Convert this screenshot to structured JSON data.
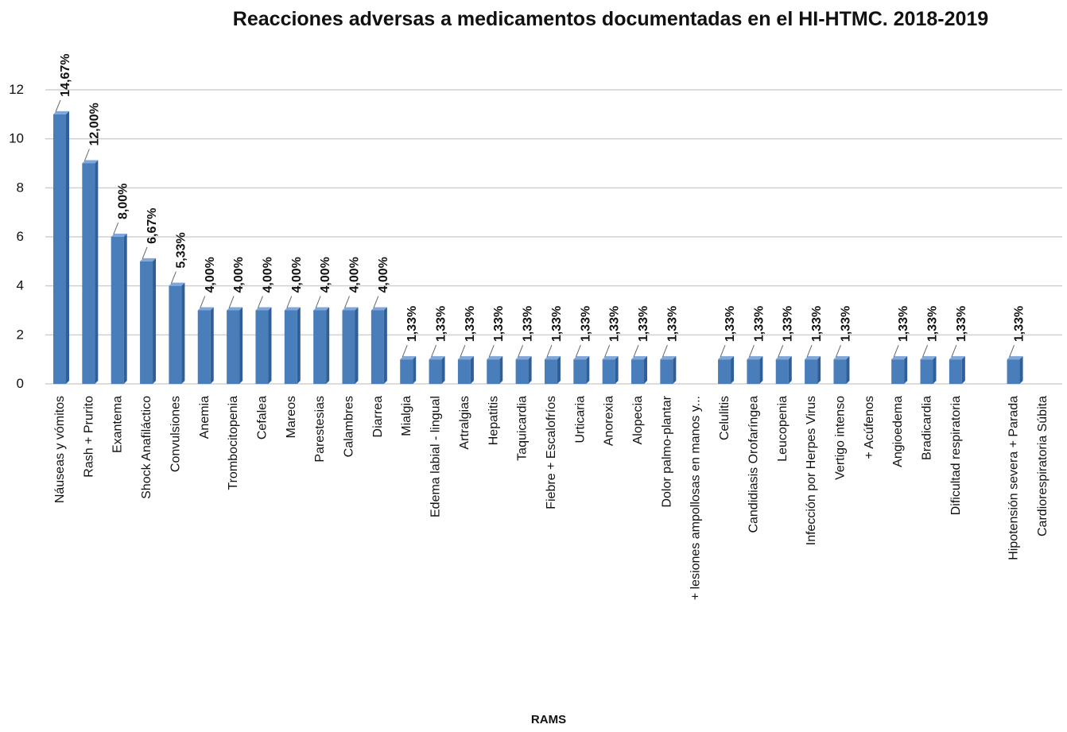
{
  "chart_data": {
    "type": "bar",
    "title": "Reacciones adversas a medicamentos documentadas en el HI-HTMC. 2018-2019",
    "x_label": "RAMS",
    "categories": [
      "Náuseas y vómitos",
      "Rash + Prurito",
      "Exantema",
      "Shock Anafiláctico",
      "Convulsiones",
      "Anemia",
      "Trombocitopenia",
      "Cefalea",
      "Mareos",
      "Parestesias",
      "Calambres",
      "Diarrea",
      "Mialgia",
      "Edema labial - lingual",
      "Artralgias",
      "Hepatitis",
      "Taquicardia",
      "Fiebre + Escalofríos",
      "Urticaria",
      "Anorexia",
      "Alopecia",
      "Dolor palmo-plantar",
      "+ lesiones ampollosas en manos y...",
      "Celulitis",
      "Candidiasis Orofaríngea",
      "Leucopenia",
      "Infección por Herpes Virus",
      "Vertigo intenso",
      "+ Acúfenos",
      "Angioedema",
      "Bradicardia",
      "Dificultad respiratoria",
      null,
      "Hipotensión severa + Parada",
      "Cardiorespiratoria Súbita"
    ],
    "values": [
      11,
      9,
      6,
      5,
      4,
      3,
      3,
      3,
      3,
      3,
      3,
      3,
      1,
      1,
      1,
      1,
      1,
      1,
      1,
      1,
      1,
      1,
      null,
      1,
      1,
      1,
      1,
      1,
      null,
      1,
      1,
      1,
      null,
      1,
      null
    ],
    "value_labels": [
      "14,67%",
      "12,00%",
      "8,00%",
      "6,67%",
      "5,33%",
      "4,00%",
      "4,00%",
      "4,00%",
      "4,00%",
      "4,00%",
      "4,00%",
      "4,00%",
      "1,33%",
      "1,33%",
      "1,33%",
      "1,33%",
      "1,33%",
      "1,33%",
      "1,33%",
      "1,33%",
      "1,33%",
      "1,33%",
      null,
      "1,33%",
      "1,33%",
      "1,33%",
      "1,33%",
      "1,33%",
      null,
      "1,33%",
      "1,33%",
      "1,33%",
      null,
      "1,33%",
      null
    ],
    "color": "#4a7ebb",
    "ylim": [
      0,
      12
    ],
    "yticks": [
      0,
      2,
      4,
      6,
      8,
      10,
      12
    ],
    "grid": true
  }
}
